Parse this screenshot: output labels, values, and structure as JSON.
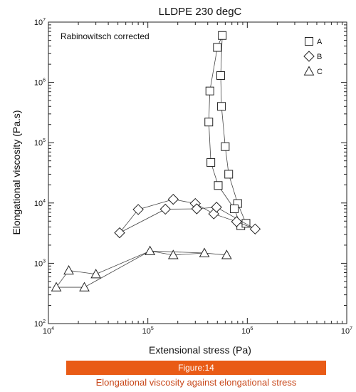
{
  "chart_data": {
    "type": "scatter",
    "title": "LLDPE 230 degC",
    "annotation": "Rabinowitsch corrected",
    "xlabel": "Extensional stress (Pa)",
    "ylabel": "Elongational viscosity (Pa.s)",
    "x_scale": "log",
    "y_scale": "log",
    "xlim": [
      10000,
      10000000
    ],
    "ylim": [
      100,
      10000000
    ],
    "x_ticks": [
      {
        "base": "10",
        "exp": "4",
        "value": 10000
      },
      {
        "base": "10",
        "exp": "5",
        "value": 100000
      },
      {
        "base": "10",
        "exp": "6",
        "value": 1000000
      },
      {
        "base": "10",
        "exp": "7",
        "value": 10000000
      }
    ],
    "y_ticks": [
      {
        "base": "10",
        "exp": "2",
        "value": 100
      },
      {
        "base": "10",
        "exp": "3",
        "value": 1000
      },
      {
        "base": "10",
        "exp": "4",
        "value": 10000
      },
      {
        "base": "10",
        "exp": "5",
        "value": 100000
      },
      {
        "base": "10",
        "exp": "6",
        "value": 1000000
      },
      {
        "base": "10",
        "exp": "7",
        "value": 10000000
      }
    ],
    "grid": false,
    "legend_position": "top-right",
    "series": [
      {
        "name": "A",
        "marker": "square",
        "points": [
          [
            560000,
            6000000
          ],
          [
            500000,
            3800000
          ],
          [
            540000,
            1300000
          ],
          [
            420000,
            720000
          ],
          [
            550000,
            400000
          ],
          [
            410000,
            220000
          ],
          [
            600000,
            86000
          ],
          [
            430000,
            47000
          ],
          [
            650000,
            30000
          ],
          [
            510000,
            19500
          ],
          [
            800000,
            9800
          ],
          [
            740000,
            8000
          ],
          [
            860000,
            4200
          ],
          [
            970000,
            4600
          ]
        ],
        "lines": [
          [
            [
              560000,
              6000000
            ],
            [
              500000,
              3800000
            ],
            [
              420000,
              720000
            ],
            [
              410000,
              220000
            ],
            [
              430000,
              47000
            ],
            [
              510000,
              19500
            ],
            [
              740000,
              8000
            ],
            [
              860000,
              4200
            ]
          ],
          [
            [
              560000,
              6000000
            ],
            [
              540000,
              1300000
            ],
            [
              550000,
              400000
            ],
            [
              600000,
              86000
            ],
            [
              650000,
              30000
            ],
            [
              800000,
              9800
            ],
            [
              970000,
              4600
            ]
          ]
        ]
      },
      {
        "name": "B",
        "marker": "diamond",
        "points": [
          [
            52000,
            3200
          ],
          [
            80000,
            7800
          ],
          [
            150000,
            7900
          ],
          [
            180000,
            11500
          ],
          [
            300000,
            9800
          ],
          [
            310000,
            8000
          ],
          [
            460000,
            6600
          ],
          [
            490000,
            8500
          ],
          [
            780000,
            4900
          ],
          [
            1200000,
            3700
          ]
        ],
        "lines": [
          [
            [
              52000,
              3200
            ],
            [
              80000,
              7800
            ],
            [
              180000,
              11500
            ],
            [
              300000,
              9800
            ],
            [
              460000,
              6600
            ],
            [
              780000,
              4900
            ],
            [
              1200000,
              3700
            ]
          ],
          [
            [
              52000,
              3200
            ],
            [
              150000,
              7900
            ],
            [
              310000,
              8000
            ],
            [
              490000,
              8500
            ],
            [
              1200000,
              3700
            ]
          ]
        ]
      },
      {
        "name": "C",
        "marker": "triangle",
        "points": [
          [
            12000,
            400
          ],
          [
            16000,
            760
          ],
          [
            23000,
            400
          ],
          [
            30000,
            660
          ],
          [
            105000,
            1600
          ],
          [
            180000,
            1370
          ],
          [
            370000,
            1480
          ],
          [
            620000,
            1370
          ]
        ],
        "lines": [
          [
            [
              12000,
              400
            ],
            [
              16000,
              760
            ],
            [
              30000,
              660
            ],
            [
              105000,
              1600
            ],
            [
              180000,
              1370
            ],
            [
              370000,
              1480
            ],
            [
              620000,
              1370
            ]
          ],
          [
            [
              12000,
              400
            ],
            [
              23000,
              400
            ],
            [
              105000,
              1600
            ],
            [
              370000,
              1480
            ]
          ]
        ]
      }
    ]
  },
  "figure": {
    "label": "Figure:14",
    "caption": "Elongational viscosity against elongational stress",
    "banner_color": "#e95b16",
    "caption_color": "#c8471a"
  }
}
